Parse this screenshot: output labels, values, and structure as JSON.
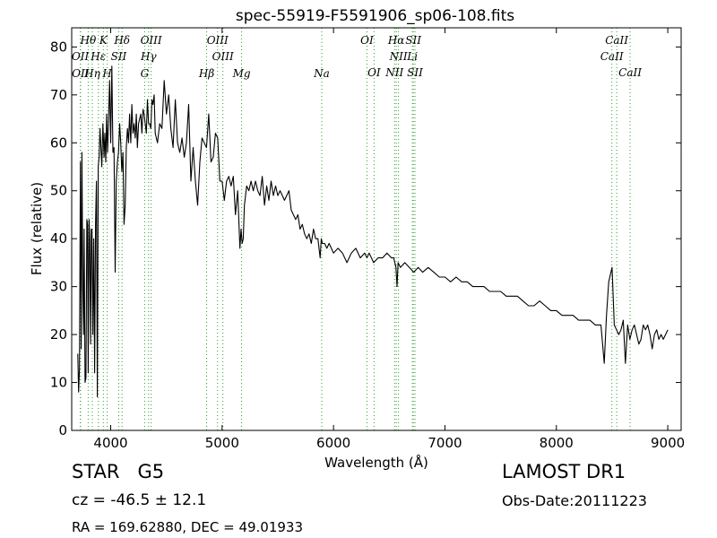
{
  "chart_data": {
    "type": "line",
    "title": "spec-55919-F5591906_sp06-108.fits",
    "xlabel": "Wavelength (Å)",
    "ylabel": "Flux (relative)",
    "xlim": [
      3650,
      9120
    ],
    "ylim": [
      0,
      84
    ],
    "xticks": [
      4000,
      5000,
      6000,
      7000,
      8000,
      9000
    ],
    "yticks": [
      0,
      10,
      20,
      30,
      40,
      50,
      60,
      70,
      80
    ],
    "grid": false,
    "line_color": "#000000",
    "marker_color": "#2ca02c",
    "series": [
      {
        "x": [
          3705,
          3712,
          3720,
          3728,
          3735,
          3742,
          3750,
          3756,
          3762,
          3770,
          3778,
          3786,
          3792,
          3798,
          3806,
          3812,
          3820,
          3826,
          3832,
          3840,
          3848,
          3856,
          3864,
          3872,
          3880,
          3888,
          3896,
          3904,
          3912,
          3920,
          3930,
          3940,
          3948,
          3956,
          3964,
          3972,
          3980,
          3990,
          4000,
          4010,
          4020,
          4030,
          4040,
          4050,
          4060,
          4070,
          4080,
          4090,
          4100,
          4110,
          4120,
          4130,
          4140,
          4150,
          4160,
          4170,
          4180,
          4190,
          4200,
          4210,
          4220,
          4230,
          4240,
          4250,
          4260,
          4270,
          4280,
          4290,
          4300,
          4310,
          4320,
          4330,
          4340,
          4350,
          4360,
          4370,
          4380,
          4390,
          4400,
          4420,
          4440,
          4460,
          4480,
          4500,
          4520,
          4540,
          4560,
          4580,
          4600,
          4620,
          4640,
          4660,
          4680,
          4700,
          4720,
          4740,
          4760,
          4780,
          4800,
          4820,
          4840,
          4860,
          4880,
          4900,
          4920,
          4940,
          4960,
          4980,
          5000,
          5020,
          5040,
          5060,
          5080,
          5100,
          5120,
          5140,
          5160,
          5170,
          5180,
          5190,
          5200,
          5220,
          5240,
          5260,
          5280,
          5300,
          5320,
          5340,
          5360,
          5380,
          5400,
          5420,
          5440,
          5460,
          5480,
          5500,
          5520,
          5540,
          5560,
          5580,
          5600,
          5620,
          5640,
          5660,
          5680,
          5700,
          5720,
          5740,
          5760,
          5780,
          5800,
          5820,
          5840,
          5860,
          5880,
          5890,
          5900,
          5920,
          5940,
          5960,
          5980,
          6000,
          6040,
          6080,
          6120,
          6160,
          6200,
          6240,
          6280,
          6300,
          6320,
          6360,
          6400,
          6440,
          6480,
          6520,
          6540,
          6560,
          6570,
          6580,
          6600,
          6640,
          6680,
          6720,
          6760,
          6800,
          6850,
          6900,
          6950,
          7000,
          7050,
          7100,
          7150,
          7200,
          7250,
          7300,
          7350,
          7400,
          7450,
          7500,
          7550,
          7600,
          7650,
          7700,
          7750,
          7800,
          7850,
          7900,
          7950,
          8000,
          8050,
          8100,
          8150,
          8200,
          8250,
          8300,
          8350,
          8400,
          8430,
          8450,
          8470,
          8500,
          8520,
          8540,
          8560,
          8580,
          8600,
          8620,
          8640,
          8660,
          8680,
          8700,
          8720,
          8740,
          8760,
          8780,
          8800,
          8820,
          8840,
          8860,
          8880,
          8900,
          8920,
          8940,
          8960,
          8980,
          9000
        ],
        "y": [
          16,
          8,
          13,
          56,
          17,
          58,
          30,
          20,
          42,
          10,
          11,
          44,
          43,
          12,
          44,
          40,
          18,
          42,
          42,
          20,
          40,
          12,
          43,
          52,
          7,
          55,
          57,
          63,
          59,
          55,
          64,
          57,
          62,
          56,
          66,
          58,
          64,
          73,
          60,
          76,
          58,
          59,
          33,
          52,
          56,
          58,
          64,
          60,
          54,
          58,
          43,
          47,
          59,
          63,
          60,
          66,
          60,
          68,
          62,
          64,
          61,
          66,
          59,
          64,
          65,
          66,
          62,
          67,
          66,
          64,
          62,
          69,
          64,
          64,
          63,
          69,
          68,
          70,
          62,
          60,
          64,
          63,
          73,
          66,
          70,
          63,
          59,
          69,
          60,
          58,
          61,
          57,
          60,
          68,
          52,
          59,
          52,
          47,
          56,
          61,
          60,
          59,
          66,
          56,
          57,
          62,
          61,
          52,
          52,
          48,
          52,
          53,
          51,
          53,
          45,
          50,
          38,
          42,
          39,
          40,
          47,
          51,
          50,
          52,
          50,
          52,
          50,
          49,
          53,
          47,
          51,
          48,
          52,
          49,
          51,
          49,
          50,
          49,
          48,
          49,
          50,
          46,
          45,
          44,
          45,
          42,
          43,
          41,
          40,
          41,
          39,
          42,
          40,
          40,
          36,
          40,
          39,
          39,
          38,
          39,
          38,
          37,
          38,
          37,
          35,
          37,
          38,
          36,
          37,
          36,
          37,
          35,
          36,
          36,
          37,
          36,
          36,
          34,
          30,
          35,
          34,
          35,
          34,
          33,
          34,
          33,
          34,
          33,
          32,
          32,
          31,
          32,
          31,
          31,
          30,
          30,
          30,
          29,
          29,
          29,
          28,
          28,
          28,
          27,
          26,
          26,
          27,
          26,
          25,
          25,
          24,
          24,
          24,
          23,
          23,
          23,
          22,
          22,
          14,
          24,
          31,
          34,
          22,
          21,
          20,
          21,
          23,
          14,
          22,
          19,
          21,
          22,
          20,
          18,
          19,
          22,
          21,
          22,
          20,
          17,
          20,
          21,
          19,
          20,
          19,
          20,
          21
        ]
      }
    ],
    "line_labels": [
      {
        "label": "Hθ",
        "wavelength": 3798,
        "row": 0
      },
      {
        "label": "K",
        "wavelength": 3934,
        "row": 0
      },
      {
        "label": "Hδ",
        "wavelength": 4102,
        "row": 0
      },
      {
        "label": "OIII",
        "wavelength": 4363,
        "row": 0
      },
      {
        "label": "OIII",
        "wavelength": 4959,
        "row": 0
      },
      {
        "label": "OI",
        "wavelength": 6300,
        "row": 0
      },
      {
        "label": "Hα",
        "wavelength": 6563,
        "row": 0
      },
      {
        "label": "SII",
        "wavelength": 6716,
        "row": 0
      },
      {
        "label": "CaII",
        "wavelength": 8542,
        "row": 0
      },
      {
        "label": "OII",
        "wavelength": 3727,
        "row": 1
      },
      {
        "label": "Hε",
        "wavelength": 3889,
        "row": 1
      },
      {
        "label": "SII",
        "wavelength": 4072,
        "row": 1
      },
      {
        "label": "Hγ",
        "wavelength": 4340,
        "row": 1
      },
      {
        "label": "OIII",
        "wavelength": 5007,
        "row": 1
      },
      {
        "label": "NII",
        "wavelength": 6583,
        "row": 1
      },
      {
        "label": "Li",
        "wavelength": 6708,
        "row": 1
      },
      {
        "label": "CaII",
        "wavelength": 8498,
        "row": 1
      },
      {
        "label": "OII",
        "wavelength": 3729,
        "row": 2
      },
      {
        "label": "Hη",
        "wavelength": 3835,
        "row": 2
      },
      {
        "label": "H",
        "wavelength": 3969,
        "row": 2
      },
      {
        "label": "G",
        "wavelength": 4305,
        "row": 2
      },
      {
        "label": "Hβ",
        "wavelength": 4861,
        "row": 2
      },
      {
        "label": "Mg",
        "wavelength": 5175,
        "row": 2
      },
      {
        "label": "Na",
        "wavelength": 5894,
        "row": 2
      },
      {
        "label": "OI",
        "wavelength": 6364,
        "row": 3
      },
      {
        "label": "NII",
        "wavelength": 6548,
        "row": 3
      },
      {
        "label": "SII",
        "wavelength": 6731,
        "row": 3
      },
      {
        "label": "CaII",
        "wavelength": 8662,
        "row": 3
      }
    ]
  },
  "info": {
    "class_label": "STAR   G5",
    "cz": "cz = -46.5 ± 12.1",
    "coords": "RA = 169.62880, DEC = 49.01933",
    "survey": "LAMOST DR1",
    "obs_date": "Obs-Date:20111223"
  }
}
